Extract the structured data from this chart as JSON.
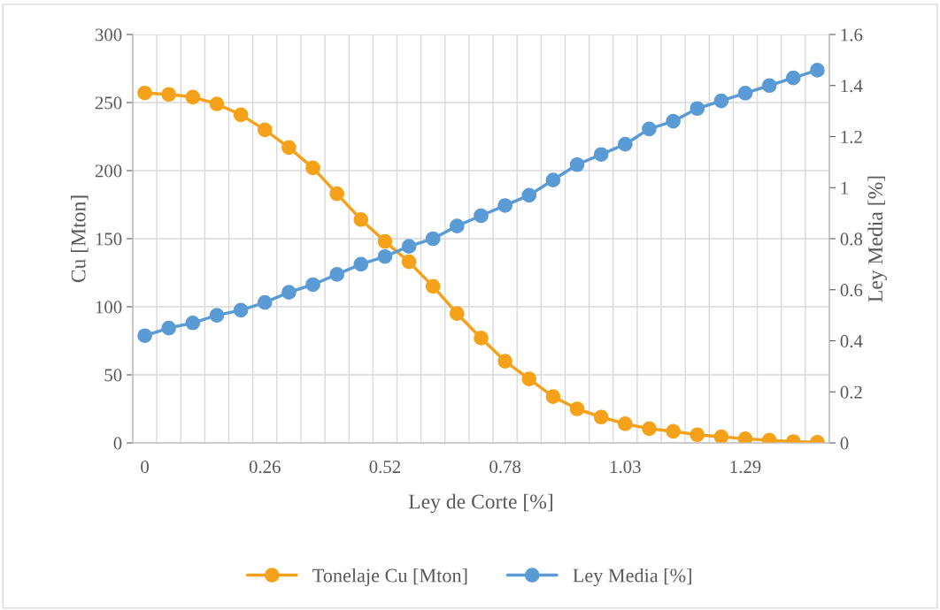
{
  "chart_data": {
    "type": "line",
    "xlabel": "Ley de Corte [%]",
    "ylabel": "Cu [Mton]",
    "y2label": "Ley Media [%]",
    "categories": [
      "0",
      null,
      null,
      null,
      null,
      "0.26",
      null,
      null,
      null,
      null,
      "0.52",
      null,
      null,
      null,
      null,
      "0.78",
      null,
      null,
      null,
      null,
      "1.03",
      null,
      null,
      null,
      null,
      "1.29",
      null,
      null,
      null
    ],
    "series": [
      {
        "name": "Tonelaje Cu [Mton]",
        "color": "#f5a21a",
        "values": [
          257,
          256,
          254,
          249,
          241,
          230,
          217,
          202,
          183,
          164,
          148,
          133,
          115,
          95,
          77,
          60,
          47,
          34,
          25,
          19,
          14,
          10.5,
          8.5,
          6,
          4.5,
          3,
          2,
          1,
          0.5
        ]
      },
      {
        "name": "Ley Media [%]",
        "color": "#5b9bd5",
        "axis": "y2",
        "values": [
          0.42,
          0.45,
          0.47,
          0.5,
          0.52,
          0.55,
          0.59,
          0.62,
          0.66,
          0.7,
          0.73,
          0.77,
          0.8,
          0.85,
          0.89,
          0.93,
          0.97,
          1.03,
          1.09,
          1.13,
          1.17,
          1.23,
          1.26,
          1.31,
          1.34,
          1.37,
          1.4,
          1.43,
          1.46
        ]
      }
    ],
    "ylim": [
      0,
      300
    ],
    "yticks": [
      0,
      50,
      100,
      150,
      200,
      250,
      300
    ],
    "y2lim": [
      0,
      1.6
    ],
    "y2ticks": [
      0,
      0.2,
      0.4,
      0.6,
      0.8,
      1,
      1.2,
      1.4,
      1.6
    ],
    "grid": true,
    "legend": "bottom",
    "marker": "circle",
    "line_style": "solid"
  }
}
